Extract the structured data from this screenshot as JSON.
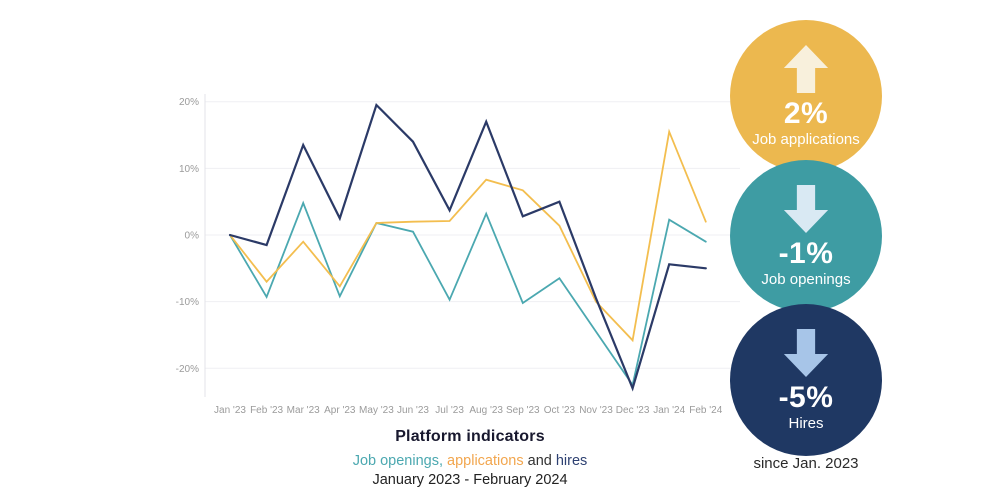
{
  "chart_data": {
    "type": "line",
    "title": "Platform indicators",
    "subtitle_parts": [
      {
        "text": "Job openings,",
        "color": "#4BA8B0"
      },
      {
        "text": " applications",
        "color": "#F2A64E"
      },
      {
        "text": " and ",
        "color": "#333333"
      },
      {
        "text": "hires",
        "color": "#2E4172"
      }
    ],
    "date_range": "January 2023 - February 2024",
    "categories": [
      "Jan '23",
      "Feb '23",
      "Mar '23",
      "Apr '23",
      "May '23",
      "Jun '23",
      "Jul '23",
      "Aug '23",
      "Sep '23",
      "Oct '23",
      "Nov '23",
      "Dec '23",
      "Jan '24",
      "Feb '24"
    ],
    "series": [
      {
        "name": "Job openings",
        "color": "#4BA8B0",
        "width": 1.8,
        "values": [
          0,
          -9.3,
          4.8,
          -9.2,
          1.8,
          0.5,
          -9.7,
          3.2,
          -10.2,
          -6.5,
          -14.5,
          -22.5,
          2.3,
          -1
        ]
      },
      {
        "name": "Job applications",
        "color": "#F3BE4F",
        "width": 1.8,
        "values": [
          0,
          -7,
          -1,
          -7.7,
          1.8,
          2,
          2.1,
          8.3,
          6.7,
          1.4,
          -10,
          -15.8,
          15.5,
          2
        ]
      },
      {
        "name": "Hires",
        "color": "#2B3A67",
        "width": 2.2,
        "values": [
          0,
          -1.5,
          13.5,
          2.5,
          19.5,
          14,
          3.7,
          17,
          2.8,
          5,
          -9.5,
          -23,
          -4.4,
          -5
        ]
      }
    ],
    "yticks": [
      {
        "v": 20,
        "label": "20%"
      },
      {
        "v": 10,
        "label": "10%"
      },
      {
        "v": 0,
        "label": "0%"
      },
      {
        "v": -10,
        "label": "-10%"
      },
      {
        "v": -20,
        "label": "-20%"
      }
    ],
    "ylim": [
      -25,
      22
    ],
    "grid": true,
    "axis_color": "#e3e3e8",
    "grid_color": "#efeff3",
    "tick_text_color": "#9b9b9b",
    "legend_position": "subtitle-below"
  },
  "badges": [
    {
      "value": "2%",
      "label": "Job applications",
      "direction": "up",
      "circle_color": "#ECB84F",
      "arrow_color": "#F8F0DC"
    },
    {
      "value": "-1%",
      "label": "Job openings",
      "direction": "down",
      "circle_color": "#3E9CA3",
      "arrow_color": "#D9E9F3"
    },
    {
      "value": "-5%",
      "label": "Hires",
      "direction": "down",
      "circle_color": "#1F3863",
      "arrow_color": "#A7C5E8"
    }
  ],
  "footnote": "since Jan. 2023"
}
